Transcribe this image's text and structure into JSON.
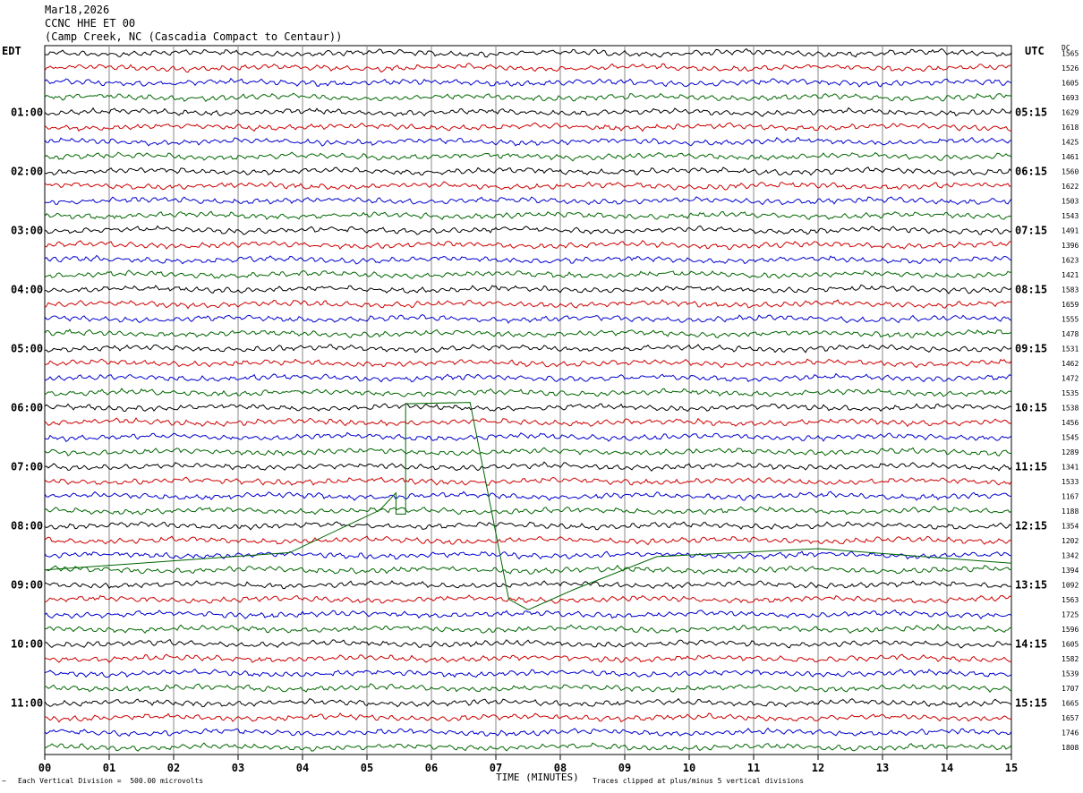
{
  "header": {
    "date": "Mar18,2026",
    "station": "CCNC HHE ET 00",
    "location": "(Camp Creek, NC (Cascadia Compact to Centaur))"
  },
  "left_zone": "EDT",
  "right_zone": "UTC",
  "dc_label": "DC",
  "footer": {
    "scale": "Each Vertical Division =  500.00 microvolts",
    "xlabel": "TIME (MINUTES)",
    "clip_note": "Traces clipped at plus/minus 5 vertical divisions",
    "corner_mark": "~"
  },
  "colors": {
    "trace_cycle": [
      "#000000",
      "#cc0000",
      "#0000cc",
      "#006600"
    ],
    "grid": "#888888"
  },
  "chart_data": {
    "type": "line",
    "xlabel": "TIME (MINUTES)",
    "xlim": [
      0,
      15
    ],
    "x_ticks": [
      "00",
      "01",
      "02",
      "03",
      "04",
      "05",
      "06",
      "07",
      "08",
      "09",
      "10",
      "11",
      "12",
      "13",
      "14",
      "15"
    ],
    "left_time_labels": [
      "01:00",
      "02:00",
      "03:00",
      "04:00",
      "05:00",
      "06:00",
      "07:00",
      "08:00",
      "09:00",
      "10:00",
      "11:00"
    ],
    "right_time_labels": [
      "05:15",
      "06:15",
      "07:15",
      "08:15",
      "09:15",
      "10:15",
      "11:15",
      "12:15",
      "13:15",
      "14:15",
      "15:15"
    ],
    "dc_offsets": [
      1565,
      1526,
      1605,
      1693,
      1629,
      1618,
      1425,
      1461,
      1560,
      1622,
      1503,
      1543,
      1491,
      1396,
      1623,
      1421,
      1583,
      1659,
      1555,
      1478,
      1531,
      1462,
      1472,
      1535,
      1538,
      1456,
      1545,
      1289,
      1341,
      1533,
      1167,
      1188,
      1354,
      1202,
      1342,
      1394,
      1092,
      1563,
      1725,
      1596,
      1605,
      1582,
      1539,
      1707,
      1665,
      1657,
      1746,
      1808
    ]
  }
}
